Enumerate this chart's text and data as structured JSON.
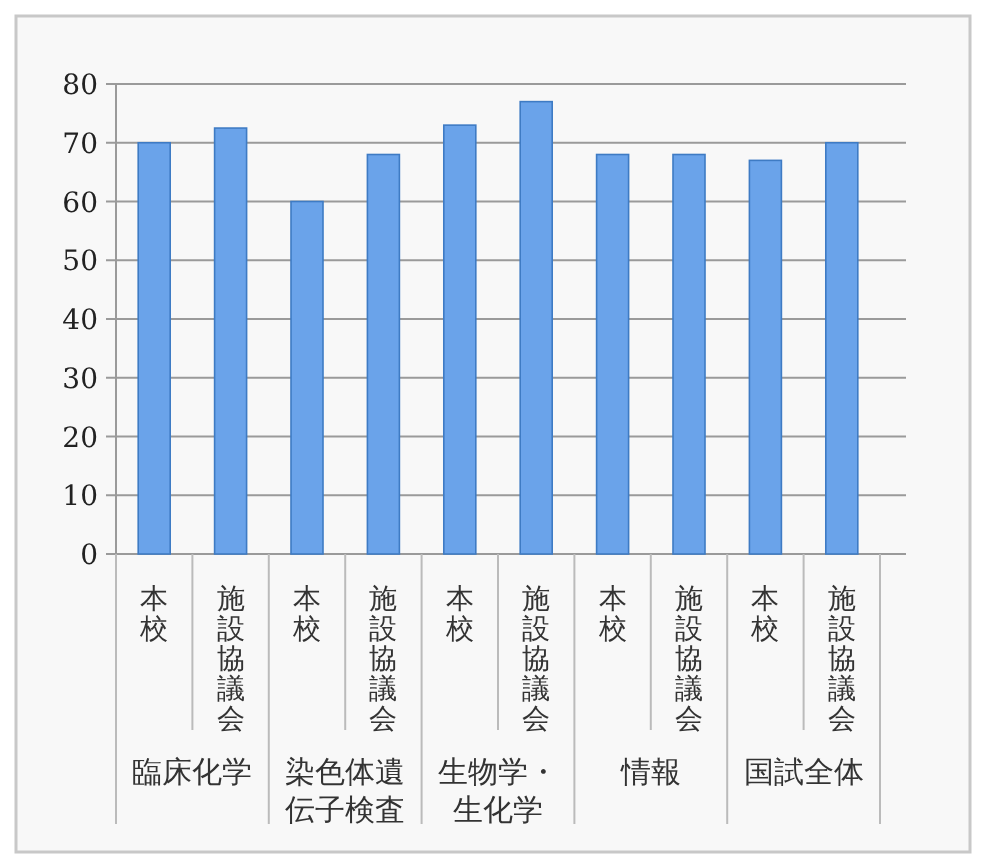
{
  "chart_data": {
    "type": "bar",
    "categories": [
      "本校",
      "施設協議会",
      "本校",
      "施設協議会",
      "本校",
      "施設協議会",
      "本校",
      "施設協議会",
      "本校",
      "施設協議会"
    ],
    "values": [
      70,
      72.5,
      60,
      68,
      73,
      77,
      68,
      68,
      67,
      70
    ],
    "color": "#6aa3ea",
    "ylim": [
      0,
      80
    ],
    "yticks": [
      0,
      10,
      20,
      30,
      40,
      50,
      60,
      70,
      80
    ],
    "grid": "y",
    "annotations": [
      "臨床化学",
      "染色体遺伝子検査",
      "生物学・生化学",
      "情報",
      "国試全体"
    ]
  }
}
